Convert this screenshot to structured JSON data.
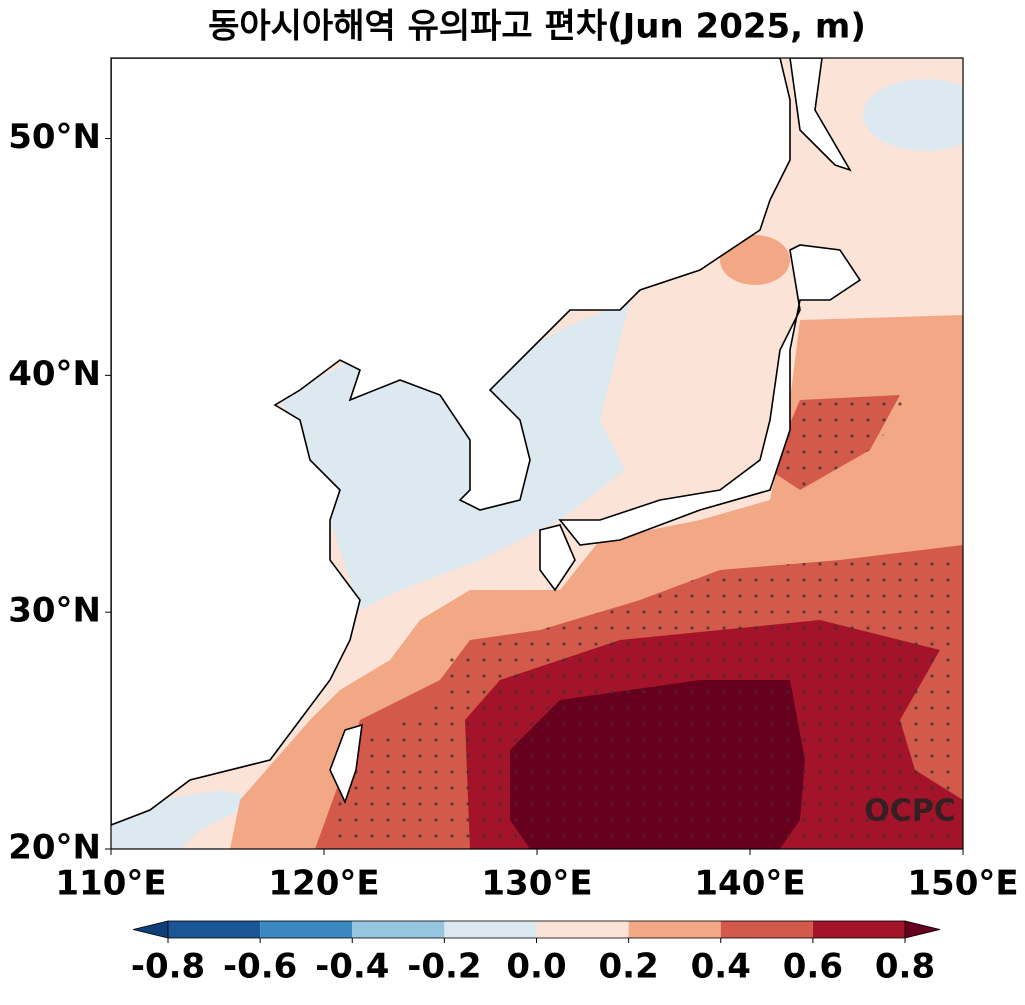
{
  "title": "동아시아해역 유의파고 편차(Jun 2025, m)",
  "map": {
    "xlim": [
      110,
      150
    ],
    "ylim": [
      20,
      53.4
    ],
    "xticks": [
      {
        "value": 110,
        "label": "110°E"
      },
      {
        "value": 120,
        "label": "120°E"
      },
      {
        "value": 130,
        "label": "130°E"
      },
      {
        "value": 140,
        "label": "140°E"
      },
      {
        "value": 150,
        "label": "150°E"
      }
    ],
    "yticks": [
      {
        "value": 20,
        "label": "20°N"
      },
      {
        "value": 30,
        "label": "30°N"
      },
      {
        "value": 40,
        "label": "40°N"
      },
      {
        "value": 50,
        "label": "50°N"
      }
    ],
    "watermark": "OCPC"
  },
  "colorbar": {
    "ticks": [
      -0.8,
      -0.6,
      -0.4,
      -0.2,
      {
        "value": 0,
        "label": "0.0"
      },
      0.2,
      0.4,
      0.6,
      0.8
    ],
    "colors": [
      "#0d3f78",
      "#1a5696",
      "#3b88c0",
      "#96c5df",
      "#dde9f1",
      "#fbe4d7",
      "#f2a884",
      "#d35a4a",
      "#a3142a",
      "#67001f"
    ]
  }
}
